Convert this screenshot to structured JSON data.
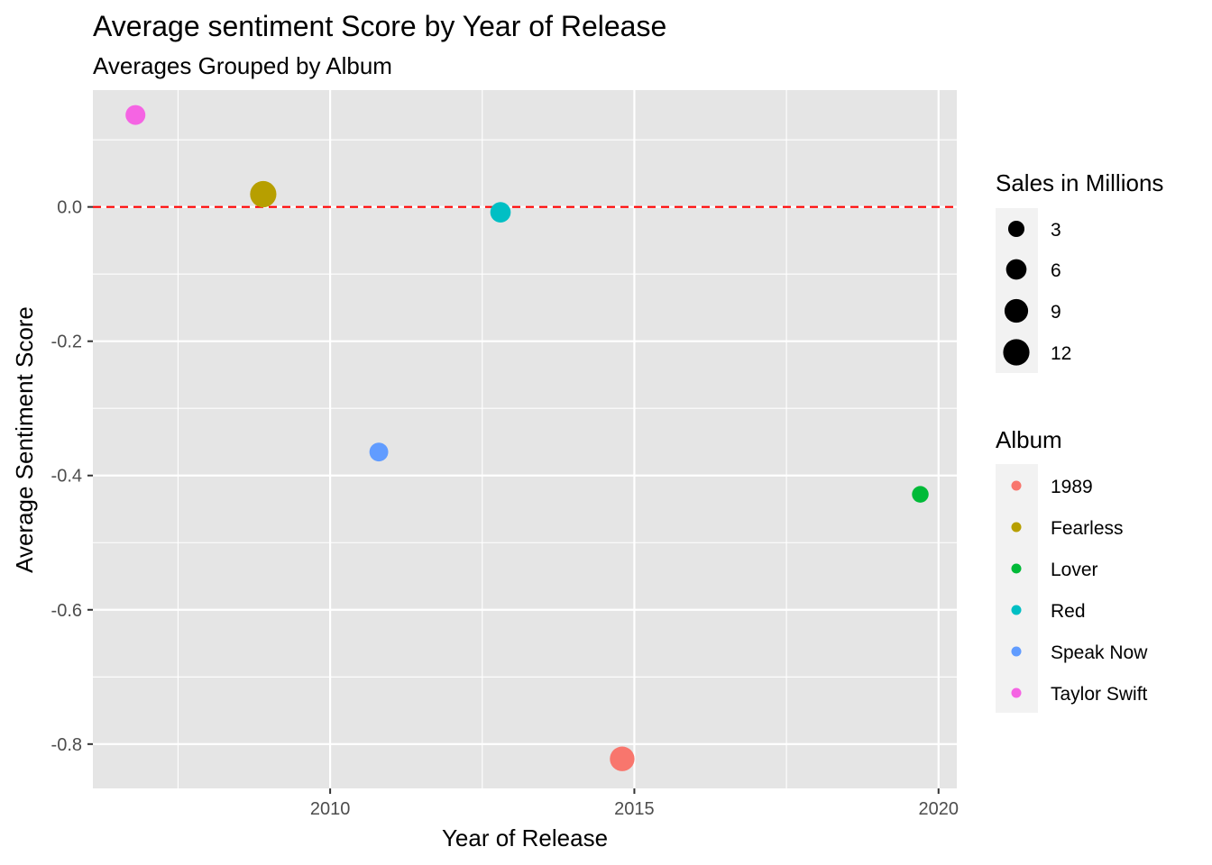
{
  "chart_data": {
    "type": "scatter",
    "title": "Average sentiment Score by Year of Release",
    "subtitle": "Averages Grouped by Album",
    "xlabel": "Year of Release",
    "ylabel": "Average Sentiment Score",
    "xlim": [
      2006.1,
      2020.3
    ],
    "ylim": [
      -0.866,
      0.174
    ],
    "x_ticks": [
      2010,
      2015,
      2020
    ],
    "x_tick_labels": [
      "2010",
      "2015",
      "2020"
    ],
    "y_ticks": [
      0.0,
      -0.2,
      -0.4,
      -0.6,
      -0.8
    ],
    "y_tick_labels": [
      "0.0",
      "-0.2",
      "-0.4",
      "-0.6",
      "-0.8"
    ],
    "grid": true,
    "reference_line": {
      "y": 0.0,
      "color": "#ff0000",
      "style": "dashed"
    },
    "points": [
      {
        "album": "Taylor Swift",
        "x": 2006.8,
        "y": 0.137,
        "sales": 5.5,
        "color": "#f564e3"
      },
      {
        "album": "Fearless",
        "x": 2008.9,
        "y": 0.019,
        "sales": 12.0,
        "color": "#b79f00"
      },
      {
        "album": "Speak Now",
        "x": 2010.8,
        "y": -0.365,
        "sales": 4.7,
        "color": "#619cff"
      },
      {
        "album": "Red",
        "x": 2012.8,
        "y": -0.008,
        "sales": 6.0,
        "color": "#00bfc4"
      },
      {
        "album": "1989",
        "x": 2014.8,
        "y": -0.822,
        "sales": 10.1,
        "color": "#f8766d"
      },
      {
        "album": "Lover",
        "x": 2019.7,
        "y": -0.428,
        "sales": 3.2,
        "color": "#00ba38"
      }
    ],
    "size_legend": {
      "title": "Sales in Millions",
      "values": [
        3,
        6,
        9,
        12
      ],
      "labels": [
        "3",
        "6",
        "9",
        "12"
      ]
    },
    "color_legend": {
      "title": "Album",
      "entries": [
        {
          "label": "1989",
          "color": "#f8766d"
        },
        {
          "label": "Fearless",
          "color": "#b79f00"
        },
        {
          "label": "Lover",
          "color": "#00ba38"
        },
        {
          "label": "Red",
          "color": "#00bfc4"
        },
        {
          "label": "Speak Now",
          "color": "#619cff"
        },
        {
          "label": "Taylor Swift",
          "color": "#f564e3"
        }
      ]
    },
    "legend_position": "right",
    "panel_background": "#e5e5e5",
    "grid_color": "#ffffff"
  }
}
